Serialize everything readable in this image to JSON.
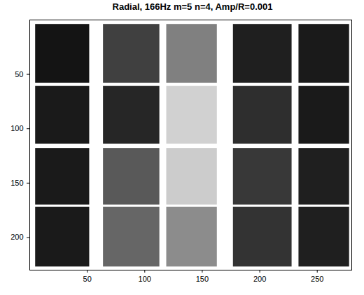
{
  "chart_data": {
    "type": "heatmap",
    "title": "Radial, 166Hz m=5 n=4, Amp/R=0.001",
    "x_ranges": [
      [
        5,
        52
      ],
      [
        64,
        113
      ],
      [
        119,
        163
      ],
      [
        177,
        228
      ],
      [
        234,
        278
      ]
    ],
    "y_ranges": [
      [
        4,
        58
      ],
      [
        61,
        114
      ],
      [
        118,
        170
      ],
      [
        172,
        227
      ]
    ],
    "cells": [
      [
        0.92,
        0.75,
        0.5,
        0.88,
        0.9
      ],
      [
        0.9,
        0.85,
        0.18,
        0.82,
        0.9
      ],
      [
        0.9,
        0.65,
        0.2,
        0.78,
        0.88
      ],
      [
        0.9,
        0.6,
        0.45,
        0.8,
        0.88
      ]
    ],
    "value_range": [
      0,
      1
    ],
    "color": "#000000",
    "xlim": [
      0,
      280
    ],
    "ylim": [
      0,
      230
    ],
    "xticks": [
      50,
      100,
      150,
      200,
      250
    ],
    "yticks": [
      50,
      100,
      150,
      200
    ],
    "grid": false
  }
}
